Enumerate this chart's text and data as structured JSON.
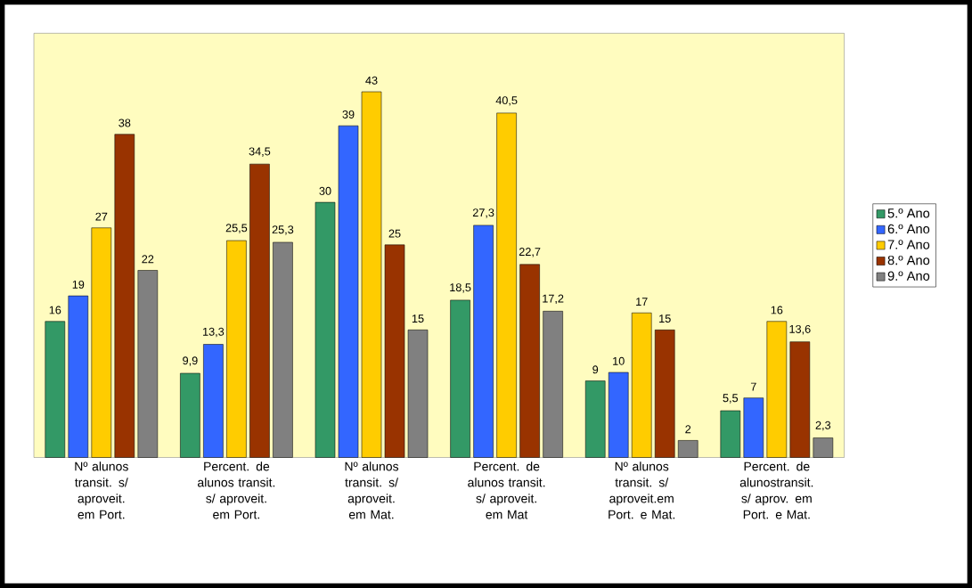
{
  "chart_data": {
    "type": "bar",
    "categories": [
      "Nº alunos transit. s/ aproveit. em Port.",
      "Percent. de alunos transit. s/ aproveit. em Port.",
      "Nº alunos transit. s/ aproveit. em Mat.",
      "Percent. de alunos transit. s/ aproveit. em Mat",
      "Nº alunos transit. s/ aproveit.em Port. e Mat.",
      "Percent. de alunostransit. s/ aprov. em Port. e Mat."
    ],
    "series": [
      {
        "name": "5.º Ano",
        "color": "#339966",
        "values": [
          16,
          9.9,
          30,
          18.5,
          9,
          5.5
        ],
        "value_labels": [
          "16",
          "9,9",
          "30",
          "18,5",
          "9",
          "5,5"
        ]
      },
      {
        "name": "6.º Ano",
        "color": "#3366ff",
        "values": [
          19,
          13.3,
          39,
          27.3,
          10,
          7
        ],
        "value_labels": [
          "19",
          "13,3",
          "39",
          "27,3",
          "10",
          "7"
        ]
      },
      {
        "name": "7.º Ano",
        "color": "#ffcc00",
        "values": [
          27,
          25.5,
          43,
          40.5,
          17,
          16
        ],
        "value_labels": [
          "27",
          "25,5",
          "43",
          "40,5",
          "17",
          "16"
        ]
      },
      {
        "name": "8.º Ano",
        "color": "#993300",
        "values": [
          38,
          34.5,
          25,
          22.7,
          15,
          13.6
        ],
        "value_labels": [
          "38",
          "34,5",
          "25",
          "22,7",
          "15",
          "13,6"
        ]
      },
      {
        "name": "9.º Ano",
        "color": "#808080",
        "values": [
          22,
          25.3,
          15,
          17.2,
          2,
          2.3
        ],
        "value_labels": [
          "22",
          "25,3",
          "15",
          "17,2",
          "2",
          "2,3"
        ]
      }
    ],
    "legend": "right"
  }
}
